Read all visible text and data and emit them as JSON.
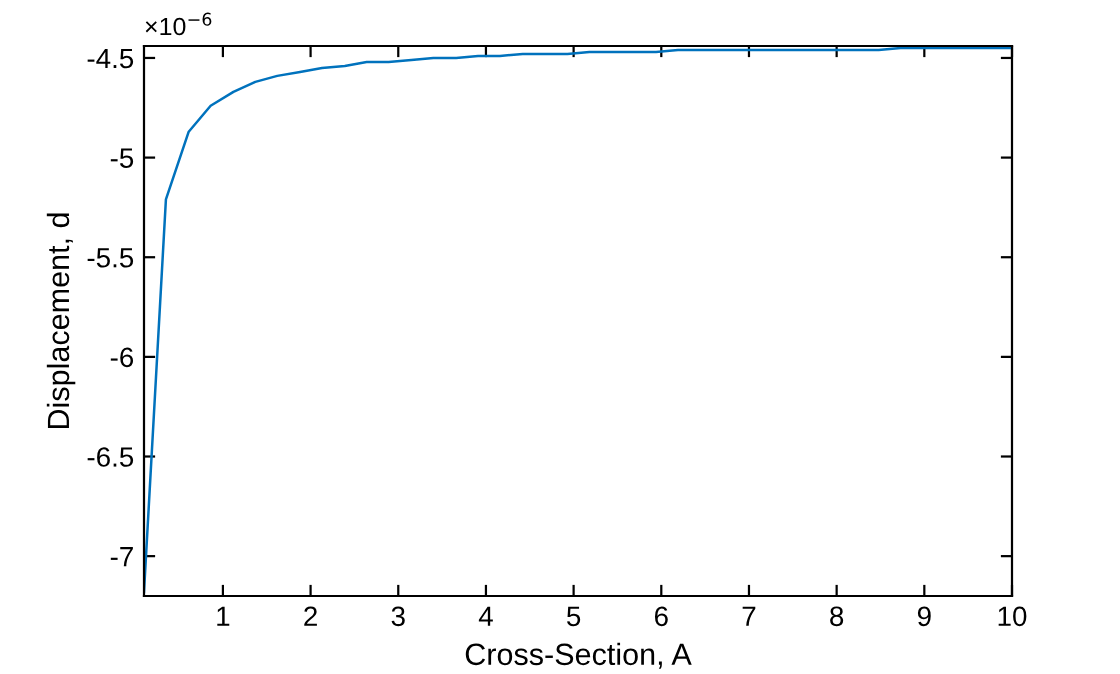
{
  "chart_data": {
    "type": "line",
    "xlabel": "Cross-Section, A",
    "ylabel": "Displacement, d",
    "annotations": [
      "×10$^{−6}$"
    ],
    "series": [
      {
        "color": "#0072bd",
        "x": [
          0.1,
          0.35,
          0.61,
          0.86,
          1.12,
          1.37,
          1.62,
          1.88,
          2.13,
          2.39,
          2.64,
          2.89,
          3.15,
          3.4,
          3.66,
          3.91,
          4.16,
          4.42,
          4.67,
          4.93,
          5.18,
          5.43,
          5.69,
          5.94,
          6.19,
          6.45,
          6.7,
          6.96,
          7.21,
          7.46,
          7.72,
          7.97,
          8.23,
          8.48,
          8.73,
          8.99,
          9.24,
          9.49,
          9.75,
          10
        ],
        "values": [
          -7.18,
          -5.21,
          -4.87,
          -4.74,
          -4.67,
          -4.62,
          -4.59,
          -4.57,
          -4.55,
          -4.54,
          -4.52,
          -4.52,
          -4.51,
          -4.5,
          -4.5,
          -4.49,
          -4.49,
          -4.48,
          -4.48,
          -4.48,
          -4.47,
          -4.47,
          -4.47,
          -4.47,
          -4.46,
          -4.46,
          -4.46,
          -4.46,
          -4.46,
          -4.46,
          -4.46,
          -4.46,
          -4.46,
          -4.46,
          -4.45,
          -4.45,
          -4.45,
          -4.45,
          -4.45,
          -4.45
        ]
      }
    ],
    "xlim": [
      0.1,
      10
    ],
    "ylim": [
      -7.2,
      -4.44
    ],
    "xticks": [
      1,
      2,
      3,
      4,
      5,
      6,
      7,
      8,
      9,
      10
    ],
    "yticks": [
      -7,
      -6.5,
      -6,
      -5.5,
      -5,
      -4.5
    ],
    "grid": false,
    "legend": false,
    "line_style": "solid"
  }
}
